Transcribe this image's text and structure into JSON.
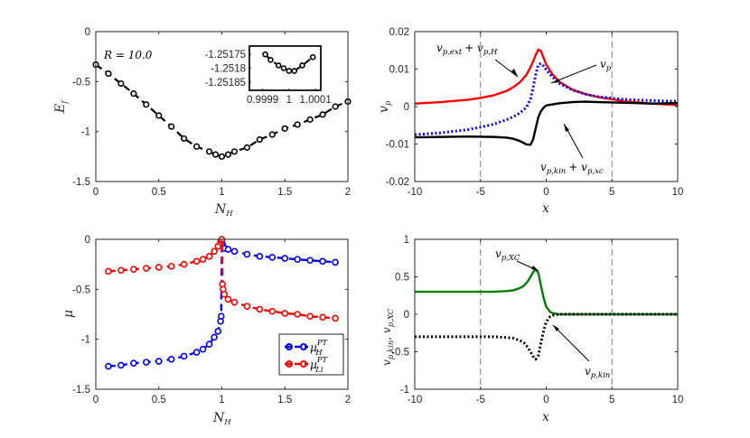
{
  "colors": {
    "black": "#000000",
    "red": "#ff0000",
    "blue": "#0000ff",
    "green": "#007f00",
    "grid": "#808080",
    "axis": "#262626"
  },
  "chart_data": [
    {
      "id": "ef",
      "type": "line",
      "xlabel_main": "N",
      "xlabel_sub": "H",
      "ylabel_main": "E",
      "ylabel_sub": "f",
      "xlim": [
        0,
        2
      ],
      "ylim": [
        -1.5,
        0
      ],
      "xticks": [
        "0",
        "0.5",
        "1",
        "1.5",
        "2"
      ],
      "yticks": [
        "0",
        "-0.5",
        "-1",
        "-1.5"
      ],
      "annotation": "R = 10.0",
      "series": [
        {
          "name": "Ef",
          "color": "#000000",
          "style": "dashed",
          "marker": "circle",
          "x": [
            0,
            0.1,
            0.2,
            0.3,
            0.4,
            0.5,
            0.6,
            0.7,
            0.8,
            0.9,
            0.95,
            1.0,
            1.05,
            1.1,
            1.2,
            1.3,
            1.4,
            1.5,
            1.6,
            1.7,
            1.8,
            1.9,
            2.0
          ],
          "y": [
            -0.33,
            -0.42,
            -0.52,
            -0.62,
            -0.73,
            -0.84,
            -0.95,
            -1.07,
            -1.15,
            -1.2,
            -1.23,
            -1.25,
            -1.23,
            -1.2,
            -1.16,
            -1.08,
            -1.03,
            -0.97,
            -0.93,
            -0.88,
            -0.83,
            -0.75,
            -0.7
          ]
        }
      ],
      "inset": {
        "xlim": [
          0.99985,
          1.00012
        ],
        "ylim": [
          -1.25188,
          -1.25172
        ],
        "xticks": [
          "0.9999",
          "1",
          "1.0001"
        ],
        "yticks": [
          "-1.25175",
          "-1.2518",
          "-1.25185"
        ],
        "x": [
          0.99991,
          0.99993,
          0.99996,
          0.99998,
          1.0,
          1.00002,
          1.00005,
          1.00009
        ],
        "y": [
          -1.25175,
          -1.25177,
          -1.25179,
          -1.2518,
          -1.25181,
          -1.25181,
          -1.25179,
          -1.25176
        ]
      }
    },
    {
      "id": "vp",
      "type": "line",
      "xlabel": "x",
      "ylabel_main": "v",
      "ylabel_sub": "p",
      "xlim": [
        -10,
        10
      ],
      "ylim": [
        -0.02,
        0.02
      ],
      "xticks": [
        "-10",
        "-5",
        "0",
        "5",
        "10"
      ],
      "yticks": [
        "0.02",
        "0.01",
        "0",
        "-0.01",
        "-0.02"
      ],
      "vlines": [
        -5,
        5
      ],
      "annotations": [
        {
          "main": "v",
          "sub": "p,ext",
          "plus": "+ v",
          "sub2": "p,H"
        },
        {
          "main": "v",
          "sub": "p"
        },
        {
          "main": "v",
          "sub": "p,kin",
          "plus": "+ v",
          "sub2": "p,xc"
        }
      ],
      "series": [
        {
          "name": "vp,ext + vp,H",
          "color": "#ff0000",
          "style": "solid",
          "x": [
            -10,
            -8,
            -6,
            -5,
            -4,
            -3,
            -2.5,
            -2,
            -1.5,
            -1.2,
            -1,
            -0.8,
            -0.6,
            -0.4,
            -0.2,
            0,
            0.5,
            1,
            2,
            3,
            4,
            6,
            8,
            10
          ],
          "y": [
            0.0008,
            0.0012,
            0.0018,
            0.0023,
            0.003,
            0.0042,
            0.0052,
            0.0065,
            0.0085,
            0.0105,
            0.012,
            0.0138,
            0.0152,
            0.0148,
            0.013,
            0.0112,
            0.0085,
            0.0066,
            0.0045,
            0.0033,
            0.0025,
            0.0014,
            0.0008,
            0.0004
          ]
        },
        {
          "name": "vp",
          "color": "#0000ff",
          "style": "dotted",
          "x": [
            -10,
            -8,
            -6,
            -5,
            -4,
            -3,
            -2.5,
            -2,
            -1.5,
            -1.2,
            -1,
            -0.8,
            -0.6,
            -0.4,
            -0.2,
            0,
            0.5,
            1,
            2,
            3,
            4,
            6,
            8,
            10
          ],
          "y": [
            -0.0075,
            -0.007,
            -0.0062,
            -0.0055,
            -0.0047,
            -0.0035,
            -0.0027,
            -0.0017,
            -0.0002,
            0.002,
            0.005,
            0.0085,
            0.0112,
            0.0115,
            0.0108,
            0.0098,
            0.0078,
            0.0062,
            0.0044,
            0.0033,
            0.0026,
            0.0019,
            0.0016,
            0.0014
          ]
        },
        {
          "name": "vp,kin + vp,xc",
          "color": "#000000",
          "style": "solid",
          "x": [
            -10,
            -8,
            -6,
            -4,
            -3,
            -2.5,
            -2,
            -1.5,
            -1.2,
            -1,
            -0.8,
            -0.6,
            -0.4,
            -0.2,
            0,
            0.5,
            1,
            2,
            3,
            4,
            6,
            8,
            10
          ],
          "y": [
            -0.0082,
            -0.0081,
            -0.008,
            -0.0081,
            -0.0083,
            -0.0086,
            -0.0092,
            -0.0101,
            -0.0102,
            -0.0088,
            -0.0058,
            -0.0028,
            -0.0012,
            -0.0003,
            0.0003,
            0.0006,
            0.0009,
            0.0012,
            0.0013,
            0.0012,
            0.001,
            0.0008,
            0.0009
          ]
        }
      ]
    },
    {
      "id": "mu",
      "type": "line",
      "xlabel_main": "N",
      "xlabel_sub": "H",
      "ylabel": "μ",
      "xlim": [
        0,
        2
      ],
      "ylim": [
        -1.5,
        0
      ],
      "xticks": [
        "0",
        "0.5",
        "1",
        "1.5",
        "2"
      ],
      "yticks": [
        "0",
        "-0.5",
        "-1",
        "-1.5"
      ],
      "legend": [
        {
          "main": "μ",
          "sup": "PT",
          "sub": "H",
          "color": "#0000ff"
        },
        {
          "main": "μ",
          "sup": "PT",
          "sub": "Li",
          "color": "#ff0000"
        }
      ],
      "series": [
        {
          "name": "mu_H",
          "color": "#0000ff",
          "style": "dashed",
          "marker": "circle",
          "x": [
            0.1,
            0.2,
            0.3,
            0.4,
            0.5,
            0.6,
            0.7,
            0.8,
            0.85,
            0.9,
            0.94,
            0.97,
            0.99,
            0.995,
            1.0,
            1.005,
            1.01,
            1.02,
            1.05,
            1.1,
            1.2,
            1.3,
            1.4,
            1.5,
            1.6,
            1.7,
            1.8,
            1.9
          ],
          "y": [
            -1.27,
            -1.26,
            -1.24,
            -1.23,
            -1.22,
            -1.2,
            -1.17,
            -1.13,
            -1.1,
            -1.05,
            -0.98,
            -0.92,
            -0.82,
            -0.77,
            -0.03,
            -0.05,
            -0.07,
            -0.09,
            -0.1,
            -0.12,
            -0.15,
            -0.17,
            -0.18,
            -0.19,
            -0.2,
            -0.21,
            -0.22,
            -0.23
          ]
        },
        {
          "name": "mu_Li",
          "color": "#ff0000",
          "style": "dashed",
          "marker": "circle",
          "x": [
            0.1,
            0.2,
            0.3,
            0.4,
            0.5,
            0.6,
            0.7,
            0.8,
            0.85,
            0.9,
            0.94,
            0.97,
            0.99,
            0.995,
            1.0,
            1.005,
            1.01,
            1.02,
            1.05,
            1.1,
            1.2,
            1.3,
            1.4,
            1.5,
            1.6,
            1.7,
            1.8,
            1.9
          ],
          "y": [
            -0.32,
            -0.31,
            -0.3,
            -0.29,
            -0.28,
            -0.27,
            -0.25,
            -0.22,
            -0.2,
            -0.17,
            -0.12,
            -0.07,
            -0.03,
            -0.01,
            0.0,
            -0.45,
            -0.5,
            -0.55,
            -0.6,
            -0.63,
            -0.67,
            -0.7,
            -0.72,
            -0.74,
            -0.75,
            -0.77,
            -0.78,
            -0.79
          ]
        }
      ]
    },
    {
      "id": "vxc",
      "type": "line",
      "xlabel": "x",
      "ylabel_a": "v",
      "ylabel_a_sub": "p,kin",
      "ylabel_b": "v",
      "ylabel_b_sub": "p,XC",
      "xlim": [
        -10,
        10
      ],
      "ylim": [
        -1,
        1
      ],
      "xticks": [
        "-10",
        "-5",
        "0",
        "5",
        "10"
      ],
      "yticks": [
        "1",
        "0.5",
        "0",
        "-0.5",
        "-1"
      ],
      "vlines": [
        -5,
        5
      ],
      "annotations": [
        {
          "main": "v",
          "sub": "p,XC"
        },
        {
          "main": "v",
          "sub": "p,kin"
        }
      ],
      "series": [
        {
          "name": "vp,XC",
          "color": "#007f00",
          "style": "solid",
          "x": [
            -10,
            -8,
            -6,
            -4,
            -3,
            -2.5,
            -2,
            -1.7,
            -1.4,
            -1.2,
            -1,
            -0.8,
            -0.6,
            -0.4,
            -0.2,
            0,
            0.3,
            0.6,
            1,
            2,
            4,
            6,
            8,
            10
          ],
          "y": [
            0.3,
            0.3,
            0.3,
            0.3,
            0.31,
            0.32,
            0.35,
            0.38,
            0.44,
            0.5,
            0.56,
            0.6,
            0.55,
            0.38,
            0.22,
            0.1,
            0.03,
            0.01,
            0.0,
            0.0,
            0.0,
            0.0,
            0.0,
            0.0
          ]
        },
        {
          "name": "vp,kin",
          "color": "#000000",
          "style": "dotted",
          "x": [
            -10,
            -8,
            -6,
            -4,
            -3,
            -2.5,
            -2,
            -1.7,
            -1.4,
            -1.2,
            -1,
            -0.8,
            -0.6,
            -0.4,
            -0.2,
            0,
            0.3,
            0.6,
            1,
            2,
            4,
            6,
            8,
            10
          ],
          "y": [
            -0.3,
            -0.3,
            -0.3,
            -0.3,
            -0.31,
            -0.32,
            -0.35,
            -0.38,
            -0.44,
            -0.5,
            -0.56,
            -0.6,
            -0.55,
            -0.38,
            -0.22,
            -0.1,
            -0.03,
            -0.01,
            0.0,
            0.0,
            0.0,
            0.0,
            0.0,
            0.0
          ]
        }
      ]
    }
  ]
}
